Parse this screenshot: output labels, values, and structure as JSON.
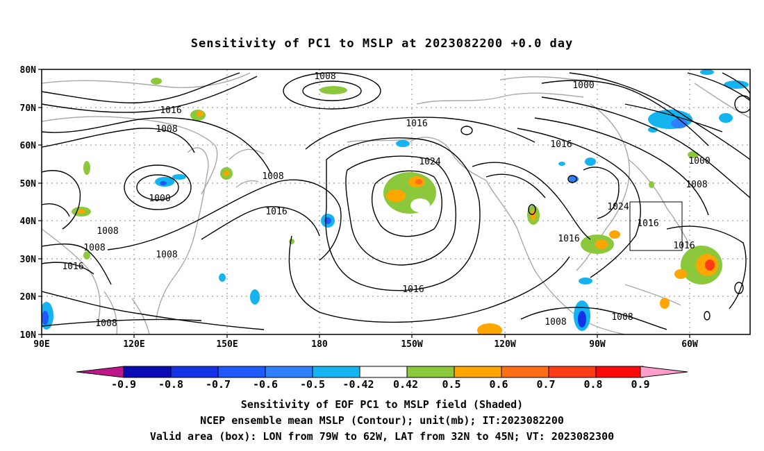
{
  "title": "Sensitivity of PC1 to MSLP at 2023082200 +0.0 day",
  "map": {
    "lat_ticks": [
      "80N",
      "70N",
      "60N",
      "50N",
      "40N",
      "30N",
      "20N",
      "10N"
    ],
    "lon_ticks": [
      "90E",
      "120E",
      "150E",
      "180",
      "150W",
      "120W",
      "90W",
      "60W"
    ],
    "contour_labels": [
      "1008",
      "1016",
      "1008",
      "1000",
      "1008",
      "1008",
      "1016",
      "1008",
      "1008",
      "1016",
      "1016",
      "1024",
      "1016",
      "1008",
      "1000",
      "1016",
      "1000",
      "1008",
      "1024",
      "1016",
      "1016",
      "1016",
      "1008"
    ],
    "valid_box": {
      "lon_from": "79W",
      "lon_to": "62W",
      "lat_from": "32N",
      "lat_to": "45N"
    }
  },
  "colorbar": {
    "labels": [
      "-0.9",
      "-0.8",
      "-0.7",
      "-0.6",
      "-0.5",
      "-0.42",
      "0.42",
      "0.5",
      "0.6",
      "0.7",
      "0.8",
      "0.9"
    ],
    "colors": [
      "#c0168c",
      "#0a0ab4",
      "#1432e6",
      "#1e5aff",
      "#2f80ff",
      "#14b4f0",
      "#ffffff",
      "#8cc83c",
      "#ffa500",
      "#ff6e14",
      "#ff3c14",
      "#fa0a0a",
      "#ff9ec8"
    ]
  },
  "footer": {
    "line1": "Sensitivity of EOF PC1 to MSLP field (Shaded)",
    "line2": "NCEP ensemble mean MSLP (Contour); unit(mb); IT:2023082200",
    "line3": "Valid area (box): LON from 79W to 62W, LAT from 32N to 45N; VT: 2023082300"
  }
}
